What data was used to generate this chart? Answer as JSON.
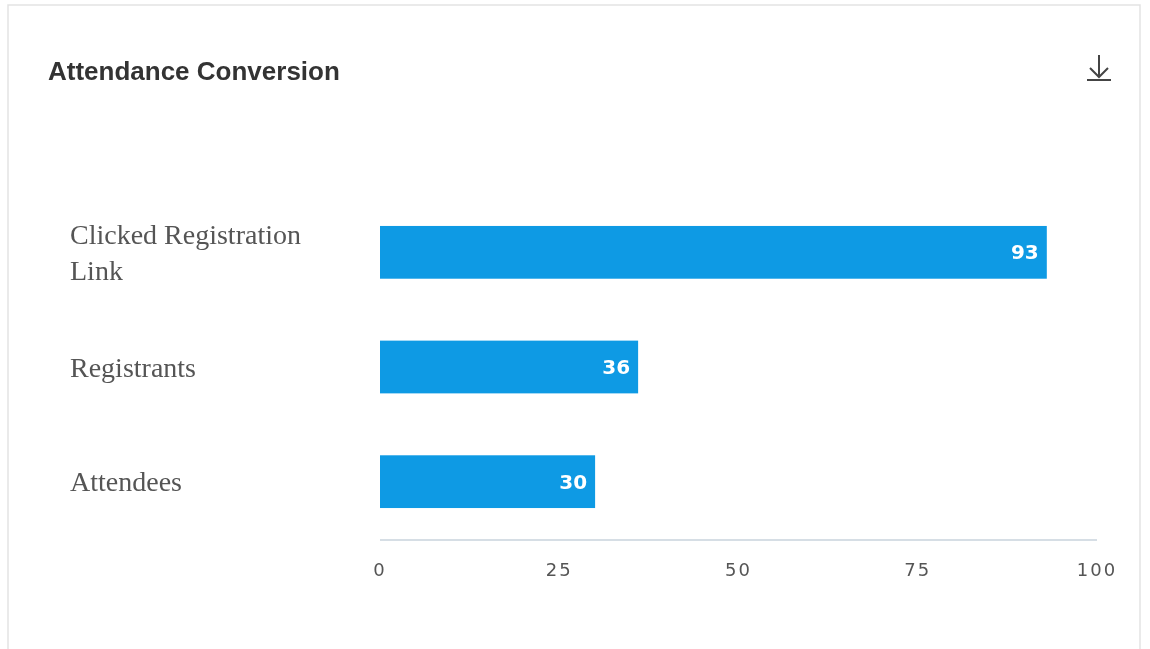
{
  "chart_data": {
    "type": "bar",
    "title": "Attendance Conversion",
    "orientation": "horizontal",
    "categories": [
      "Clicked Registration Link",
      "Registrants",
      "Attendees"
    ],
    "values": [
      93,
      36,
      30
    ],
    "color": "#0e9ae4",
    "data_labels": true,
    "xlim": [
      0,
      100
    ],
    "xticks": [
      0,
      25,
      50,
      75,
      100
    ],
    "grid": false
  }
}
